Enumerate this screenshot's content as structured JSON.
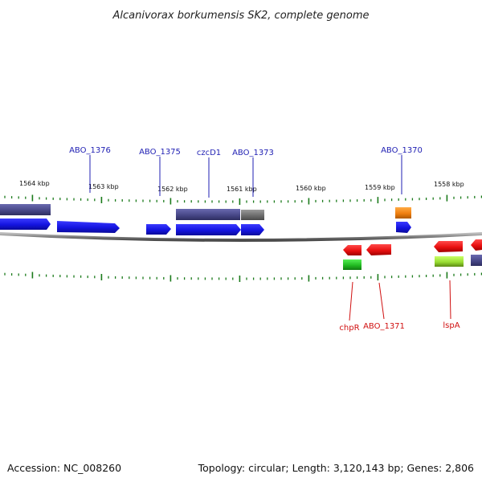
{
  "title": "Alcanivorax borkumensis SK2, complete genome",
  "footer": {
    "accession": "Accession: NC_008260",
    "topology": "Topology: circular; Length: 3,120,143 bp; Genes: 2,806"
  },
  "scale_labels": [
    "1564 kbp",
    "1563 kbp",
    "1562 kbp",
    "1561 kbp",
    "1560 kbp",
    "1559 kbp",
    "1558 kbp"
  ],
  "gene_labels_forward": [
    "ABO_1376",
    "ABO_1375",
    "czcD1",
    "ABO_1373",
    "ABO_1370"
  ],
  "gene_labels_reverse": [
    "chpR",
    "ABO_1371",
    "lspA"
  ],
  "colors": {
    "forward_gene": "#1414e6",
    "reverse_gene": "#ee1111",
    "cds_purple": "#4a4a8c",
    "cds_gray": "#707070",
    "cds_orange": "#f08010",
    "cds_green": "#22bb22",
    "cds_lime": "#99dd33",
    "tick_green": "#1a7a1a",
    "backbone": "#7a7a7a"
  }
}
